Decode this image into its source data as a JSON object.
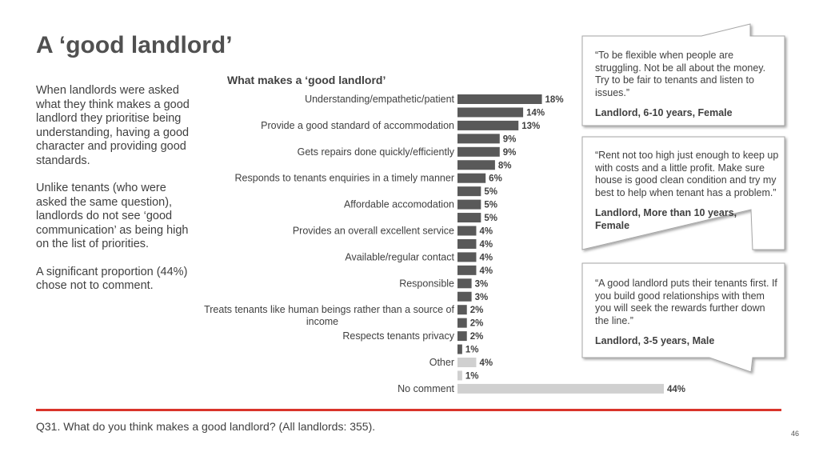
{
  "header": {
    "title": "A ‘good landlord’"
  },
  "body_paragraphs": [
    "When landlords were asked what they think makes a good landlord they prioritise being understanding, having a good character and providing good standards.",
    "Unlike tenants (who were asked the same question), landlords do not see ‘good communication’ as being high on the list of priorities.",
    "A significant proportion (44%) chose not to comment."
  ],
  "colors": {
    "main_bar": "#595959",
    "other_bar": "#d0d0d0",
    "accent_line": "#d9342b",
    "box_border": "#a6a6a6"
  },
  "chart_data": {
    "type": "bar",
    "orientation": "horizontal",
    "title": "What makes a ‘good landlord’",
    "xlim": [
      0,
      50
    ],
    "grid": false,
    "items": [
      {
        "label": "Understanding/empathetic/patient",
        "value": 18,
        "value_label": "18%",
        "color": "main"
      },
      {
        "label": "",
        "value": 14,
        "value_label": "14%",
        "color": "main"
      },
      {
        "label": "Provide a good standard of accommodation",
        "value": 13,
        "value_label": "13%",
        "color": "main"
      },
      {
        "label": "",
        "value": 9,
        "value_label": "9%",
        "color": "main"
      },
      {
        "label": "Gets repairs done quickly/efficiently",
        "value": 9,
        "value_label": "9%",
        "color": "main"
      },
      {
        "label": "",
        "value": 8,
        "value_label": "8%",
        "color": "main"
      },
      {
        "label": "Responds to tenants enquiries in a timely manner",
        "value": 6,
        "value_label": "6%",
        "color": "main"
      },
      {
        "label": "",
        "value": 5,
        "value_label": "5%",
        "color": "main"
      },
      {
        "label": "Affordable accomodation",
        "value": 5,
        "value_label": "5%",
        "color": "main"
      },
      {
        "label": "",
        "value": 5,
        "value_label": "5%",
        "color": "main"
      },
      {
        "label": "Provides an overall excellent service",
        "value": 4,
        "value_label": "4%",
        "color": "main"
      },
      {
        "label": "",
        "value": 4,
        "value_label": "4%",
        "color": "main"
      },
      {
        "label": "Available/regular contact",
        "value": 4,
        "value_label": "4%",
        "color": "main"
      },
      {
        "label": "",
        "value": 4,
        "value_label": "4%",
        "color": "main"
      },
      {
        "label": "Responsible",
        "value": 3,
        "value_label": "3%",
        "color": "main"
      },
      {
        "label": "",
        "value": 3,
        "value_label": "3%",
        "color": "main"
      },
      {
        "label": "Treats tenants like human beings rather than a source of income",
        "value": 2,
        "value_label": "2%",
        "color": "main"
      },
      {
        "label": "",
        "value": 2,
        "value_label": "2%",
        "color": "main"
      },
      {
        "label": "Respects tenants privacy",
        "value": 2,
        "value_label": "2%",
        "color": "main"
      },
      {
        "label": "",
        "value": 1,
        "value_label": "1%",
        "color": "main"
      },
      {
        "label": "Other",
        "value": 4,
        "value_label": "4%",
        "color": "other"
      },
      {
        "label": "",
        "value": 1,
        "value_label": "1%",
        "color": "other"
      },
      {
        "label": "No comment",
        "value": 44,
        "value_label": "44%",
        "color": "other"
      }
    ]
  },
  "quotes": [
    {
      "text": "“To be flexible when people are struggling. Not be all about the money. Try to be fair to tenants and listen to issues.”",
      "attribution": "Landlord, 6-10 years, Female"
    },
    {
      "text": "“Rent not too high just enough to keep up with costs and a little profit. Make sure house is good clean condition and try my best to help when tenant has a problem.”",
      "attribution": "Landlord, More than 10 years, Female"
    },
    {
      "text": "“A good landlord puts their tenants first. If you build good relationships with them you will seek the rewards further down the line.”",
      "attribution": "Landlord, 3-5 years, Male"
    }
  ],
  "footer": {
    "note": "Q31. What do you think makes a good landlord? (All landlords: 355).",
    "page_number": "46"
  }
}
